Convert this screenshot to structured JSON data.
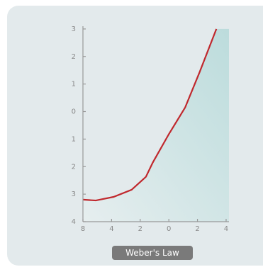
{
  "chart_data": {
    "type": "line",
    "title": "Weber's Law",
    "x": [
      -3,
      -2.55,
      -1.93,
      -1.3,
      -0.8,
      -0.56,
      0,
      0.57,
      1.07,
      1.66
    ],
    "series": [
      {
        "color": "#c0282d",
        "values": [
          -3.2,
          -3.23,
          -3.1,
          -2.84,
          -2.37,
          -1.85,
          -0.82,
          0.15,
          1.42,
          3.0
        ]
      }
    ],
    "xlim": [
      -3,
      2.1
    ],
    "ylim": [
      -4,
      3.1
    ],
    "xticks": [
      {
        "value": -3,
        "label": "8"
      },
      {
        "value": -2,
        "label": "4"
      },
      {
        "value": -1,
        "label": "2"
      },
      0,
      {
        "value": 1,
        "label": "2"
      },
      {
        "value": 2,
        "label": "4"
      }
    ],
    "yticks": [
      3,
      2,
      1,
      0,
      {
        "value": -1,
        "label": "1"
      },
      {
        "value": -2,
        "label": "2"
      },
      {
        "value": -3,
        "label": "3"
      },
      {
        "value": -4,
        "label": "4"
      }
    ]
  }
}
